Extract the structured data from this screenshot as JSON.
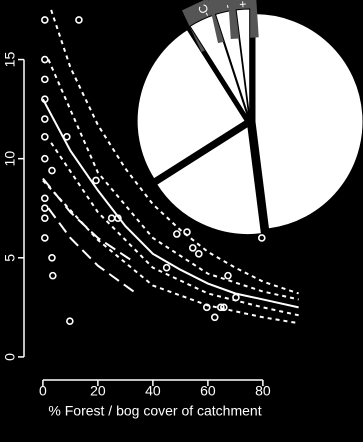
{
  "chart_data": [
    {
      "type": "scatter",
      "x_label": "% Forest / bog cover of catchment",
      "color": "#ffffff",
      "xlim": [
        -3.6,
        113.5
      ],
      "ylim": [
        -0.66,
        17.6
      ],
      "xticks": [
        0,
        20,
        40,
        60,
        80
      ],
      "yticks": [
        0,
        5,
        10,
        15
      ],
      "x": [
        0.7,
        13.1,
        0.7,
        0.7,
        0.7,
        0.7,
        0.7,
        8.7,
        0.7,
        3.3,
        19.3,
        0.7,
        0.7,
        0.7,
        25,
        27.3,
        0.7,
        3.3,
        3.6,
        9.8,
        45,
        48.7,
        52.4,
        54.5,
        56.7,
        76.4,
        79.6,
        67.3,
        70.2,
        59.6,
        62.5,
        64.7,
        65.8
      ],
      "y": [
        17,
        17,
        15,
        14,
        13,
        12,
        11.1,
        11.1,
        10,
        9.4,
        8.9,
        8,
        7.5,
        7,
        7,
        7,
        6,
        5,
        4.1,
        1.8,
        4.5,
        6.2,
        6.3,
        5.5,
        5.2,
        8,
        6,
        4.1,
        3,
        2.5,
        2,
        2.5,
        2.5
      ],
      "lines": [
        {
          "dash": "solid",
          "x": [
            0,
            10,
            20,
            30,
            40,
            50,
            60,
            70,
            80,
            93
          ],
          "y": [
            13,
            10.4,
            8.4,
            6.6,
            5.2,
            4.4,
            3.7,
            3.2,
            2.9,
            2.5
          ]
        },
        {
          "dash": "dotted",
          "x": [
            3,
            10,
            20,
            30,
            40,
            50,
            60,
            70,
            80,
            93
          ],
          "y": [
            17.5,
            14.6,
            11.7,
            9.5,
            7.7,
            6.4,
            5.3,
            4.5,
            3.8,
            3.2
          ]
        },
        {
          "dash": "dotted",
          "x": [
            2,
            20,
            40,
            60,
            80,
            93
          ],
          "y": [
            15,
            9.3,
            6,
            4.2,
            3.3,
            2.9
          ]
        },
        {
          "dash": "dotted",
          "x": [
            3,
            20,
            40,
            60,
            80,
            93
          ],
          "y": [
            10.8,
            7.3,
            4.5,
            3.2,
            2.5,
            2.1
          ]
        },
        {
          "dash": "dotted",
          "x": [
            0,
            20,
            40,
            60,
            80,
            93
          ],
          "y": [
            8.9,
            5.9,
            3.6,
            2.6,
            2,
            1.7
          ]
        },
        {
          "dash": "long",
          "x": [
            0,
            10,
            20,
            33
          ],
          "y": [
            9,
            7.3,
            6,
            4.8
          ]
        },
        {
          "dash": "long",
          "x": [
            2,
            10,
            20,
            33
          ],
          "y": [
            7.5,
            6,
            4.6,
            3.3
          ]
        }
      ]
    },
    {
      "type": "pie",
      "values": [
        48,
        18,
        25,
        4,
        3,
        2
      ],
      "labels": [
        null,
        null,
        null,
        "F-C",
        "-",
        "+"
      ],
      "color": "#ffffff",
      "label_color": "#555555"
    }
  ]
}
